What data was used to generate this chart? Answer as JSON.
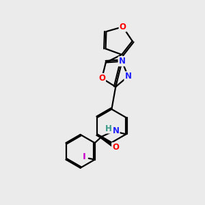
{
  "background_color": "#ebebeb",
  "bond_color": "#000000",
  "bond_width": 1.6,
  "atom_colors": {
    "O": "#ff0000",
    "N": "#2020ff",
    "I": "#cc00cc",
    "H": "#3a9a8a",
    "C": "#000000"
  },
  "font_size": 8.5,
  "fig_width": 3.0,
  "fig_height": 3.0,
  "dpi": 100
}
